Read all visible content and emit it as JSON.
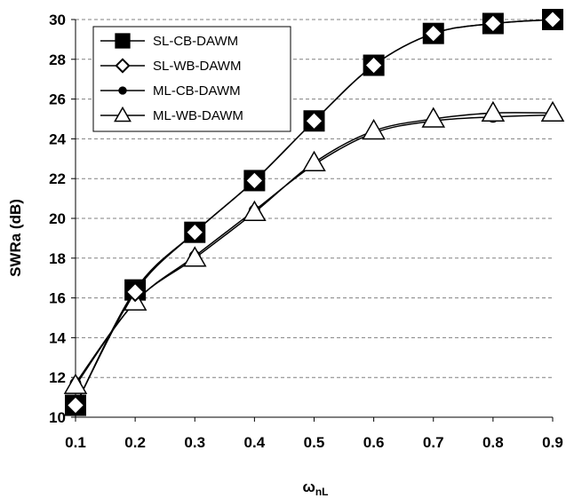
{
  "chart_data": {
    "type": "line",
    "title": "",
    "xlabel": "ω",
    "xlabel_sub": "nL",
    "ylabel": "SWRa (dB)",
    "xlim": [
      0.1,
      0.9
    ],
    "ylim": [
      10,
      30
    ],
    "xticks": [
      "0.1",
      "0.2",
      "0.3",
      "0.4",
      "0.5",
      "0.6",
      "0.7",
      "0.8",
      "0.9"
    ],
    "yticks": [
      "10",
      "12",
      "14",
      "16",
      "18",
      "20",
      "22",
      "24",
      "26",
      "28",
      "30"
    ],
    "grid": "horizontal dashed",
    "legend_position": "top-left",
    "x": [
      0.1,
      0.2,
      0.3,
      0.4,
      0.5,
      0.6,
      0.7,
      0.8,
      0.9
    ],
    "series": [
      {
        "name": "SL-CB-DAWM",
        "marker": "square-filled",
        "values": [
          10.6,
          16.4,
          19.3,
          21.9,
          24.9,
          27.7,
          29.3,
          29.8,
          30.0
        ]
      },
      {
        "name": "SL-WB-DAWM",
        "marker": "diamond-open",
        "values": [
          10.6,
          16.3,
          19.3,
          21.9,
          24.9,
          27.7,
          29.3,
          29.8,
          30.0
        ]
      },
      {
        "name": "ML-CB-DAWM",
        "marker": "circle-filled",
        "values": [
          11.7,
          15.8,
          18.1,
          20.4,
          22.7,
          24.3,
          24.9,
          25.1,
          25.2
        ]
      },
      {
        "name": "ML-WB-DAWM",
        "marker": "triangle-open",
        "values": [
          11.6,
          15.8,
          18.0,
          20.3,
          22.8,
          24.4,
          25.0,
          25.3,
          25.3
        ]
      }
    ],
    "colors": {
      "line": "#000000",
      "grid": "#808080",
      "background": "#ffffff"
    }
  }
}
